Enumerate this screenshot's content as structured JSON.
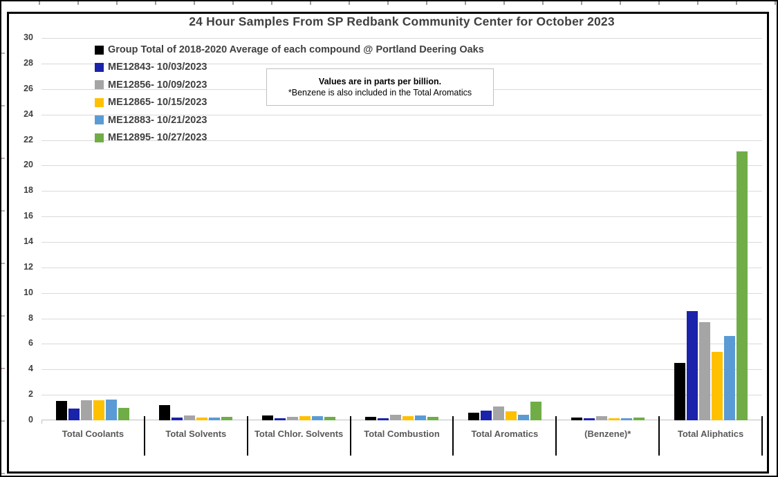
{
  "chart_data": {
    "type": "bar",
    "title": "24 Hour Samples From SP Redbank Community Center for October 2023",
    "xlabel": "",
    "ylabel": "",
    "units": "parts per billion",
    "ylim": [
      0,
      30
    ],
    "ytick_step": 2,
    "grid": true,
    "legend_position": "top-left-inside",
    "categories": [
      "Total Coolants",
      "Total Solvents",
      "Total Chlor. Solvents",
      "Total Combustion",
      "Total Aromatics",
      "(Benzene)*",
      "Total Aliphatics"
    ],
    "series": [
      {
        "name": "Group Total of 2018-2020 Average of each compound @ Portland Deering Oaks",
        "color": "#000000",
        "values": [
          1.5,
          1.2,
          0.4,
          0.3,
          0.6,
          0.22,
          4.5
        ]
      },
      {
        "name": "ME12843- 10/03/2023",
        "color": "#1A23AA",
        "values": [
          0.95,
          0.2,
          0.18,
          0.18,
          0.78,
          0.18,
          8.6
        ]
      },
      {
        "name": "ME12856- 10/09/2023",
        "color": "#A5A5A5",
        "values": [
          1.55,
          0.4,
          0.3,
          0.45,
          1.1,
          0.31,
          7.7
        ]
      },
      {
        "name": "ME12865- 10/15/2023",
        "color": "#FFC000",
        "values": [
          1.55,
          0.2,
          0.33,
          0.33,
          0.72,
          0.18,
          5.35
        ]
      },
      {
        "name": "ME12883- 10/21/2023",
        "color": "#5B9BD5",
        "values": [
          1.65,
          0.2,
          0.33,
          0.36,
          0.45,
          0.15,
          6.6
        ]
      },
      {
        "name": "ME12895- 10/27/2023",
        "color": "#70AD47",
        "values": [
          1.0,
          0.3,
          0.25,
          0.26,
          1.45,
          0.22,
          21.1
        ]
      }
    ]
  },
  "annotation": {
    "line1": "Values are in parts per billion.",
    "line2": "*Benzene is also included in the Total Aromatics"
  }
}
